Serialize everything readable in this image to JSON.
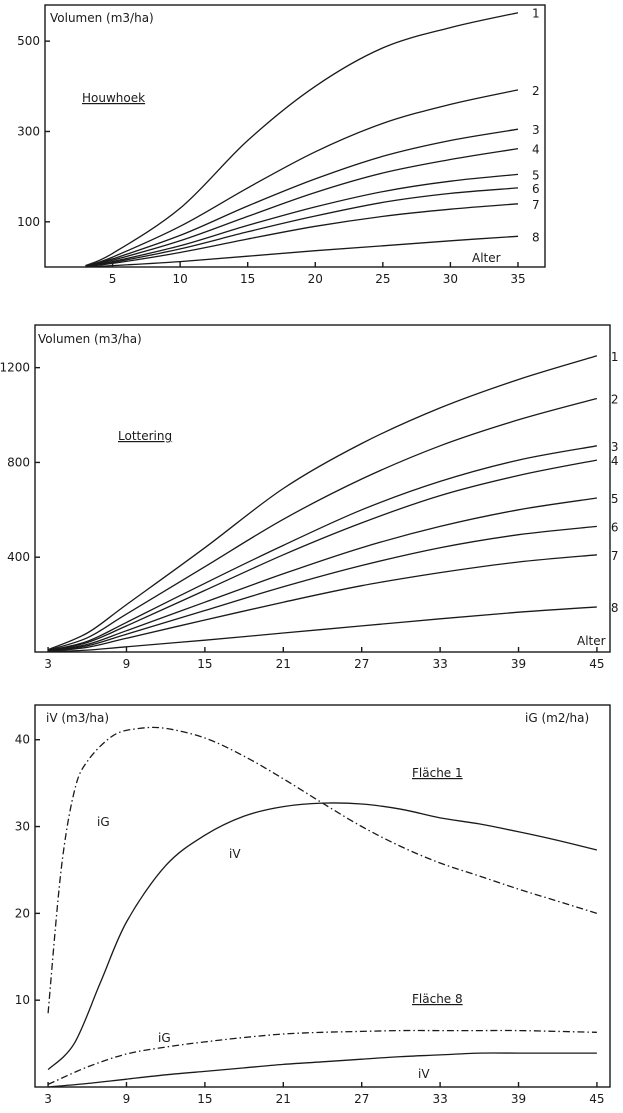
{
  "chart_data": [
    {
      "type": "line",
      "ylabel": "Volumen (m3/ha)",
      "xlabel": "Alter",
      "annotation": "Houwhoek",
      "x_ticks": [
        5,
        10,
        15,
        20,
        25,
        30,
        35
      ],
      "y_ticks": [
        100,
        300,
        500
      ],
      "xlim": [
        0,
        37
      ],
      "ylim": [
        0,
        580
      ],
      "x": [
        3,
        5,
        10,
        15,
        20,
        25,
        30,
        35
      ],
      "series": [
        {
          "name": "1",
          "values": [
            3,
            30,
            130,
            280,
            400,
            485,
            530,
            563
          ]
        },
        {
          "name": "2",
          "values": [
            2,
            22,
            90,
            175,
            255,
            318,
            360,
            392
          ]
        },
        {
          "name": "3",
          "values": [
            2,
            18,
            70,
            135,
            195,
            245,
            280,
            305
          ]
        },
        {
          "name": "4",
          "values": [
            2,
            15,
            58,
            112,
            165,
            208,
            238,
            262
          ]
        },
        {
          "name": "5",
          "values": [
            1,
            12,
            47,
            92,
            133,
            167,
            190,
            205
          ]
        },
        {
          "name": "6",
          "values": [
            1,
            10,
            40,
            78,
            113,
            143,
            163,
            175
          ]
        },
        {
          "name": "7",
          "values": [
            1,
            8,
            32,
            62,
            90,
            112,
            128,
            140
          ]
        },
        {
          "name": "8",
          "values": [
            0,
            3,
            12,
            24,
            36,
            47,
            58,
            68
          ]
        }
      ]
    },
    {
      "type": "line",
      "ylabel": "Volumen (m3/ha)",
      "xlabel": "Alter",
      "annotation": "Lottering",
      "x_ticks": [
        3,
        9,
        15,
        21,
        27,
        33,
        39,
        45
      ],
      "y_ticks": [
        400,
        800,
        1200
      ],
      "xlim": [
        2,
        46
      ],
      "ylim": [
        0,
        1380
      ],
      "x": [
        3,
        6,
        9,
        15,
        21,
        27,
        33,
        39,
        45
      ],
      "series": [
        {
          "name": "1",
          "values": [
            10,
            80,
            200,
            440,
            690,
            880,
            1030,
            1150,
            1250
          ]
        },
        {
          "name": "2",
          "values": [
            8,
            60,
            160,
            360,
            560,
            730,
            870,
            980,
            1070
          ]
        },
        {
          "name": "3",
          "values": [
            6,
            45,
            125,
            290,
            450,
            600,
            720,
            810,
            870
          ]
        },
        {
          "name": "4",
          "values": [
            6,
            40,
            110,
            260,
            410,
            545,
            660,
            745,
            810
          ]
        },
        {
          "name": "5",
          "values": [
            5,
            32,
            90,
            210,
            330,
            440,
            530,
            600,
            650
          ]
        },
        {
          "name": "6",
          "values": [
            4,
            26,
            75,
            175,
            275,
            365,
            440,
            495,
            530
          ]
        },
        {
          "name": "7",
          "values": [
            3,
            20,
            58,
            135,
            210,
            280,
            335,
            380,
            410
          ]
        },
        {
          "name": "8",
          "values": [
            1,
            8,
            22,
            50,
            80,
            110,
            140,
            168,
            190
          ]
        }
      ]
    },
    {
      "type": "line",
      "ylabel_left": "iV (m3/ha)",
      "ylabel_right": "iG (m2/ha)",
      "annotations": [
        "Fläche 1",
        "Fläche 8"
      ],
      "x_ticks": [
        3,
        9,
        15,
        21,
        27,
        33,
        39,
        45
      ],
      "y_ticks": [
        10,
        20,
        30,
        40
      ],
      "xlim": [
        2,
        46
      ],
      "ylim": [
        0,
        44
      ],
      "series": [
        {
          "name": "iG",
          "group": "Fläche 1",
          "style": "dashdot",
          "x": [
            3,
            4,
            5,
            6,
            8,
            10,
            12,
            15,
            18,
            21,
            24,
            27,
            30,
            33,
            36,
            39,
            42,
            45
          ],
          "values": [
            8.5,
            25,
            34,
            37.5,
            40.5,
            41.3,
            41.3,
            40.2,
            38.1,
            35.5,
            32.7,
            30,
            27.7,
            25.8,
            24.3,
            22.8,
            21.4,
            20
          ]
        },
        {
          "name": "iV",
          "group": "Fläche 1",
          "style": "solid",
          "x": [
            3,
            5,
            7,
            9,
            12,
            15,
            18,
            21,
            24,
            27,
            30,
            33,
            36,
            39,
            42,
            45
          ],
          "values": [
            2,
            5,
            12,
            19,
            25.5,
            29,
            31.2,
            32.3,
            32.7,
            32.6,
            32,
            31,
            30.3,
            29.4,
            28.4,
            27.3
          ]
        },
        {
          "name": "iG",
          "group": "Fläche 8",
          "style": "dashdot",
          "x": [
            3,
            6,
            9,
            12,
            15,
            18,
            21,
            24,
            27,
            30,
            33,
            36,
            39,
            42,
            45
          ],
          "values": [
            0.3,
            2.3,
            3.8,
            4.6,
            5.2,
            5.7,
            6.1,
            6.3,
            6.4,
            6.5,
            6.5,
            6.5,
            6.5,
            6.4,
            6.3
          ]
        },
        {
          "name": "iV",
          "group": "Fläche 8",
          "style": "solid",
          "x": [
            3,
            6,
            9,
            12,
            15,
            18,
            21,
            24,
            27,
            30,
            33,
            36,
            39,
            42,
            45
          ],
          "values": [
            0,
            0.4,
            0.9,
            1.4,
            1.8,
            2.2,
            2.6,
            2.9,
            3.2,
            3.5,
            3.7,
            3.9,
            3.9,
            3.9,
            3.9
          ]
        }
      ]
    }
  ]
}
